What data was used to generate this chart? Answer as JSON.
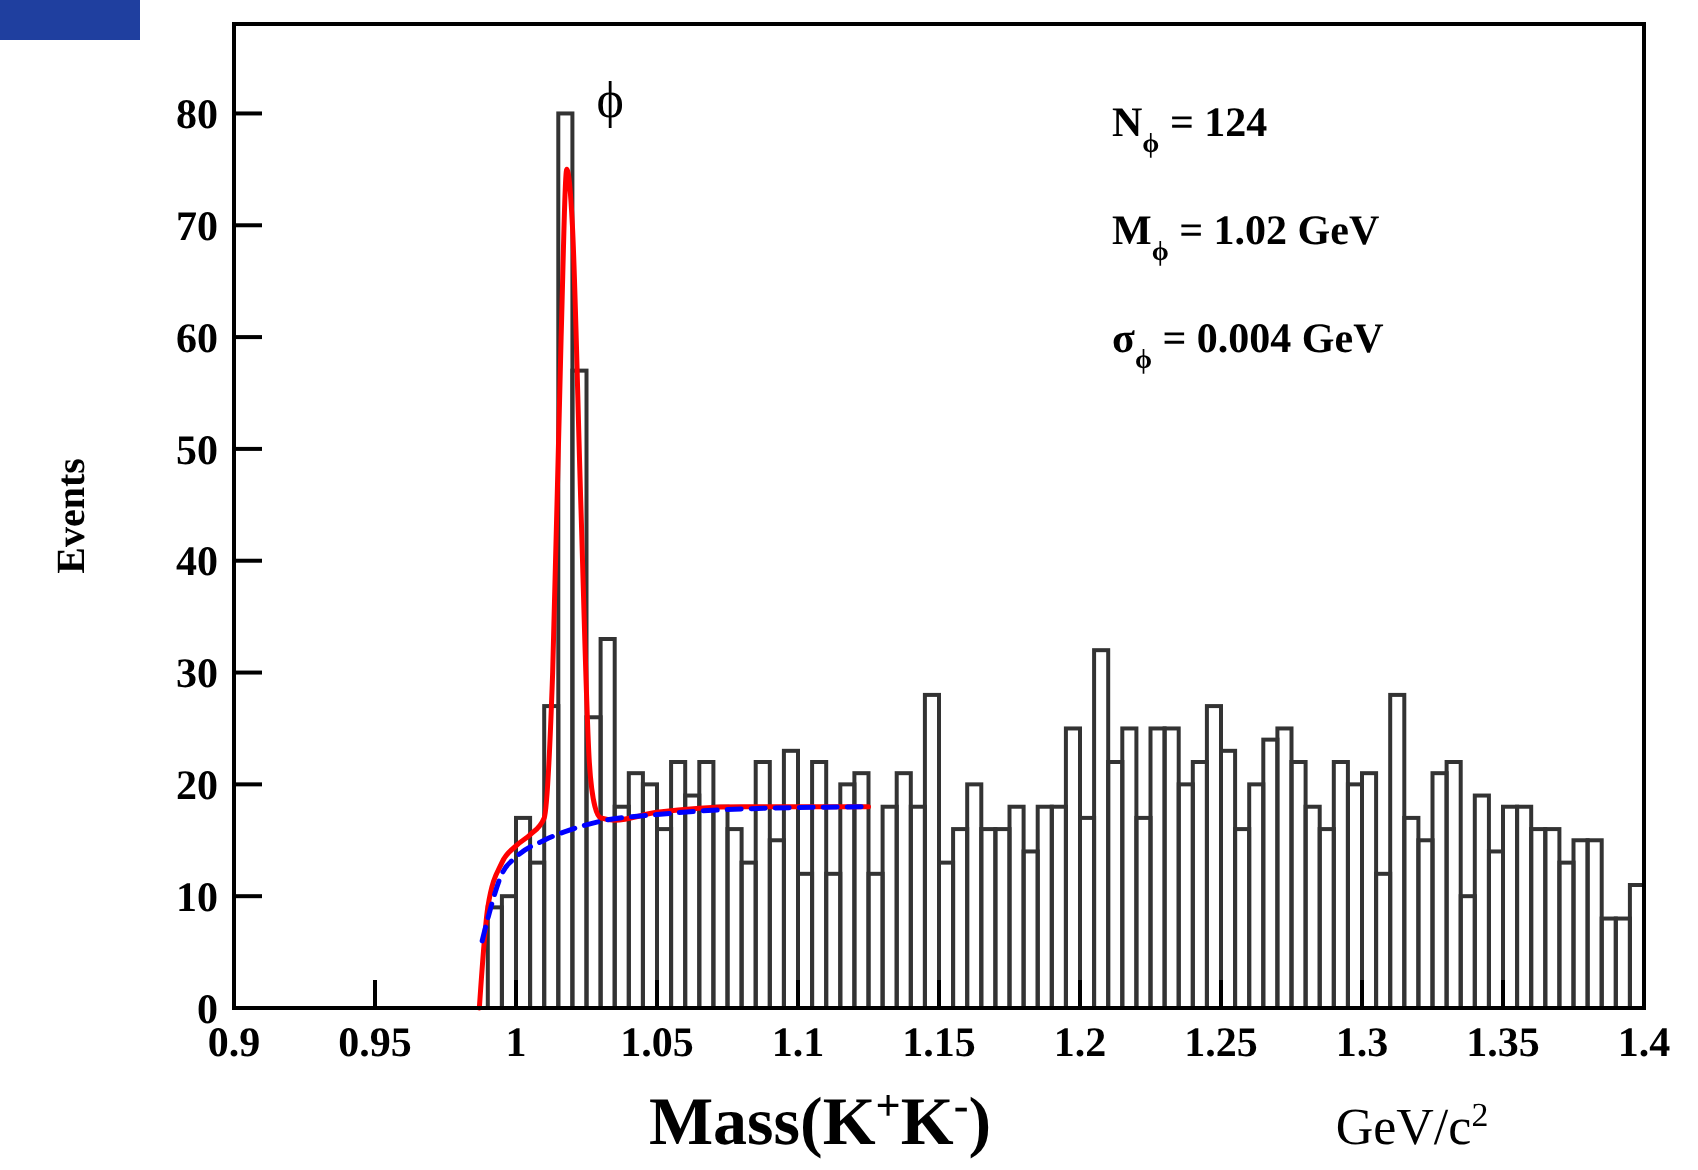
{
  "chart_data": {
    "type": "histogram",
    "xlabel": "Mass(K$^{+}$K$^{-}$)",
    "ylabel": "Events",
    "bins": [
      0.99,
      0.995,
      1.0,
      1.005,
      1.01,
      1.015,
      1.02,
      1.025,
      1.03,
      1.035,
      1.04,
      1.045,
      1.05,
      1.055,
      1.06,
      1.065,
      1.07,
      1.075,
      1.08,
      1.085,
      1.09,
      1.095,
      1.1,
      1.105,
      1.11,
      1.115,
      1.12,
      1.125,
      1.13,
      1.135,
      1.14,
      1.145,
      1.15,
      1.155,
      1.16,
      1.165,
      1.17,
      1.175,
      1.18,
      1.185,
      1.19,
      1.195,
      1.2,
      1.205,
      1.21,
      1.215,
      1.22,
      1.225,
      1.23,
      1.235,
      1.24,
      1.245,
      1.25,
      1.255,
      1.26,
      1.265,
      1.27,
      1.275,
      1.28,
      1.285,
      1.29,
      1.295,
      1.3,
      1.305,
      1.31,
      1.315,
      1.32,
      1.325,
      1.33,
      1.335,
      1.34,
      1.345,
      1.35,
      1.355,
      1.36,
      1.365,
      1.37,
      1.375,
      1.38,
      1.385,
      1.39,
      1.395,
      1.4
    ],
    "values": [
      9,
      10,
      17,
      13,
      27,
      80,
      57,
      26,
      33,
      18,
      21,
      20,
      16,
      22,
      19,
      22,
      18,
      16,
      13,
      22,
      15,
      23,
      12,
      22,
      12,
      20,
      21,
      12,
      18,
      21,
      18,
      28,
      13,
      16,
      20,
      16,
      16,
      18,
      14,
      18,
      18,
      25,
      17,
      32,
      22,
      25,
      17,
      25,
      25,
      20,
      22,
      27,
      23,
      16,
      20,
      24,
      25,
      22,
      18,
      16,
      22,
      20,
      21,
      12,
      28,
      17,
      15,
      21,
      22,
      10,
      19,
      14,
      18,
      18,
      16,
      16,
      13,
      15,
      15,
      8,
      8,
      11
    ],
    "color": "#333333",
    "series": [
      {
        "type": "line",
        "color": "#ff0000",
        "line_style": "solid",
        "x": [
          0.987,
          0.99,
          0.995,
          1.0,
          1.005,
          1.01,
          1.013,
          1.016,
          1.018,
          1.02,
          1.023,
          1.026,
          1.028,
          1.03,
          1.035,
          1.05,
          1.08,
          1.125
        ],
        "values": [
          0,
          9,
          13,
          14.5,
          15.5,
          17,
          30,
          60,
          75,
          70,
          45,
          22,
          18,
          17,
          16.8,
          17.5,
          18,
          18
        ]
      },
      {
        "type": "line",
        "color": "#0000ff",
        "line_style": "dashed",
        "x": [
          0.988,
          0.99,
          0.995,
          1.0,
          1.01,
          1.02,
          1.03,
          1.05,
          1.08,
          1.125
        ],
        "values": [
          6,
          8,
          12,
          13.5,
          15,
          16,
          16.7,
          17.3,
          17.8,
          18
        ]
      }
    ],
    "annotations": [
      {
        "text": "ϕ",
        "x": 1.02,
        "y": 80
      },
      "N$_{ϕ}$ = 124",
      "M$_{ϕ}$ = 1.02 GeV",
      "σ$_{ϕ}$ = 0.004 GeV",
      "GeV/c$^{2}$"
    ],
    "xlim": [
      0.9,
      1.4
    ],
    "xticks": [
      0.9,
      0.95,
      1,
      1.05,
      1.1,
      1.15,
      1.2,
      1.25,
      1.3,
      1.35,
      1.4
    ],
    "ylim": [
      0,
      88
    ],
    "yticks": [
      0,
      10,
      20,
      30,
      40,
      50,
      60,
      70,
      80
    ]
  }
}
